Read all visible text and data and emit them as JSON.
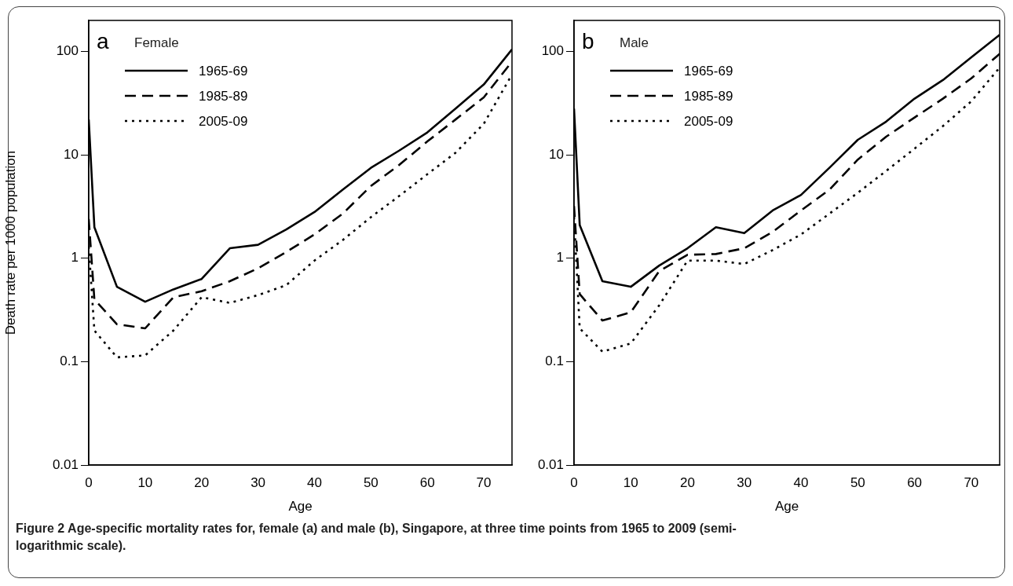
{
  "chart_data": [
    {
      "type": "line",
      "title": "Female",
      "annotations": [
        "a",
        "Figure 2 Age-specific mortality rates for, female (a) and male (b), Singapore, at three time points from 1965 to 2009 (semi-logarithmic scale)."
      ],
      "xlabel": "Age",
      "ylabel": "Death rate per 1000 population",
      "x": [
        0,
        1,
        5,
        10,
        15,
        20,
        25,
        30,
        35,
        40,
        45,
        50,
        55,
        60,
        65,
        70,
        75
      ],
      "xlim": [
        0,
        75
      ],
      "xticks": [
        0,
        10,
        20,
        30,
        40,
        50,
        60,
        70
      ],
      "ylim": [
        0.01,
        200
      ],
      "yticks": [
        0.01,
        0.1,
        1,
        10,
        100
      ],
      "log": true,
      "legend": "top left",
      "marker": "none",
      "series": [
        {
          "name": "1965-69",
          "color": "#000000",
          "line_style": "solid",
          "values": [
            22,
            2.0,
            0.53,
            0.38,
            0.5,
            0.63,
            1.25,
            1.35,
            1.9,
            2.8,
            4.6,
            7.5,
            11,
            16.5,
            28,
            48,
            105
          ]
        },
        {
          "name": "1985-89",
          "color": "#000000",
          "line_style": "dashed",
          "values": [
            2.4,
            0.4,
            0.23,
            0.21,
            0.42,
            0.48,
            0.6,
            0.8,
            1.15,
            1.7,
            2.7,
            5,
            8,
            13.5,
            22,
            36,
            80
          ]
        },
        {
          "name": "2005-09",
          "color": "#000000",
          "line_style": "dotted",
          "values": [
            1.3,
            0.2,
            0.11,
            0.115,
            0.2,
            0.42,
            0.37,
            0.44,
            0.55,
            0.95,
            1.5,
            2.5,
            4,
            6.5,
            10.5,
            20,
            60
          ]
        }
      ]
    },
    {
      "type": "line",
      "title": "Male",
      "annotations": [
        "b"
      ],
      "xlabel": "Age",
      "x": [
        0,
        1,
        5,
        10,
        15,
        20,
        25,
        30,
        35,
        40,
        45,
        50,
        55,
        60,
        65,
        70,
        75
      ],
      "xlim": [
        0,
        75
      ],
      "xticks": [
        0,
        10,
        20,
        30,
        40,
        50,
        60,
        70
      ],
      "ylim": [
        0.01,
        200
      ],
      "yticks": [
        0.01,
        0.1,
        1,
        10,
        100
      ],
      "log": true,
      "legend": "top left",
      "marker": "none",
      "series": [
        {
          "name": "1965-69",
          "color": "#000000",
          "line_style": "solid",
          "values": [
            28,
            2.1,
            0.6,
            0.53,
            0.85,
            1.25,
            2.0,
            1.75,
            2.9,
            4.1,
            7.5,
            14,
            21,
            35,
            53,
            88,
            145
          ]
        },
        {
          "name": "1985-89",
          "color": "#000000",
          "line_style": "dashed",
          "values": [
            3.2,
            0.45,
            0.25,
            0.3,
            0.75,
            1.08,
            1.1,
            1.25,
            1.8,
            2.9,
            4.6,
            9,
            15,
            23,
            35,
            55,
            95
          ]
        },
        {
          "name": "2005-09",
          "color": "#000000",
          "line_style": "dotted",
          "values": [
            2.5,
            0.21,
            0.125,
            0.15,
            0.35,
            0.95,
            0.95,
            0.88,
            1.2,
            1.7,
            2.7,
            4.3,
            7,
            11.5,
            19,
            33,
            70
          ]
        }
      ]
    }
  ]
}
